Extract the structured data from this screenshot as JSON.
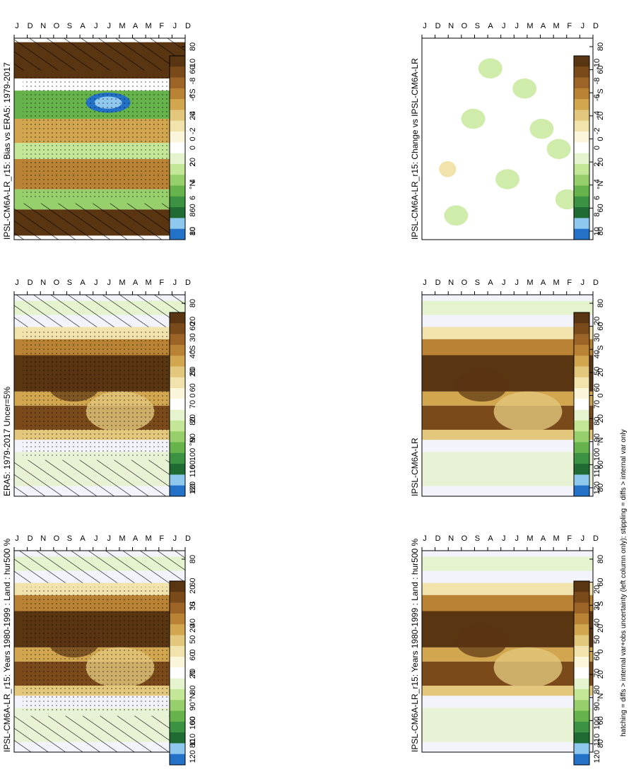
{
  "figure": {
    "footnote": "hatching = diffs > internal var+obs uncertainty (left column only); stippling = diffs > internal var only"
  },
  "colors": {
    "abs_scale": [
      "#2372c8",
      "#8ec8ee",
      "#1f6b33",
      "#3a9242",
      "#66b34b",
      "#96cf6b",
      "#c3e796",
      "#e5f4cf",
      "#ffffff",
      "#fbf5dc",
      "#f1e3ab",
      "#e2c77c",
      "#d1a64f",
      "#b98235",
      "#9c6426",
      "#7b4a1b",
      "#5a3512"
    ],
    "bias_scale": [
      "#2372c8",
      "#8ec8ee",
      "#1f6b33",
      "#3a9242",
      "#66b34b",
      "#96cf6b",
      "#c3e796",
      "#e5f4cf",
      "#ffffff",
      "#fbf5dc",
      "#f1e3ab",
      "#e2c77c",
      "#d1a64f",
      "#b98235",
      "#9c6426",
      "#7b4a1b",
      "#5a3512"
    ]
  },
  "chart_data": [
    {
      "type": "heatmap",
      "title": "IPSL-CM6A-LR_r15: Years 1980-1999 : Land : hur500 %",
      "x_tick_labels": [
        "D",
        "J",
        "F",
        "M",
        "A",
        "M",
        "J",
        "J",
        "A",
        "S",
        "O",
        "N",
        "D",
        "J"
      ],
      "y_tick_labels": [
        "80",
        "60",
        "°N",
        "20",
        "0",
        "20",
        "°S",
        "60",
        "80"
      ],
      "colorbar_labels": [
        "120",
        "110",
        "100",
        "90",
        "80",
        "70",
        "60",
        "50",
        "40",
        "30",
        "20"
      ],
      "hatching": true,
      "stippling": true
    },
    {
      "type": "heatmap",
      "title": "IPSL-CM6A-LR_r15: Years 1980-1999 : Land : hur500 %",
      "x_tick_labels": [
        "D",
        "J",
        "F",
        "M",
        "A",
        "M",
        "J",
        "J",
        "A",
        "S",
        "O",
        "N",
        "D",
        "J"
      ],
      "y_tick_labels": [
        "80",
        "60",
        "°N",
        "20",
        "0",
        "20",
        "°S",
        "60",
        "80"
      ],
      "colorbar_labels": [
        "120",
        "110",
        "100",
        "90",
        "80",
        "70",
        "60",
        "50",
        "40",
        "30",
        "20"
      ],
      "hatching": false,
      "stippling": false
    },
    {
      "type": "heatmap",
      "title": "ERA5: 1979-2017 Uncer=5%",
      "x_tick_labels": [
        "D",
        "J",
        "F",
        "M",
        "A",
        "M",
        "J",
        "J",
        "A",
        "S",
        "O",
        "N",
        "D",
        "J"
      ],
      "y_tick_labels": [
        "80",
        "60",
        "°N",
        "20",
        "0",
        "20",
        "°S",
        "60",
        "80"
      ],
      "colorbar_labels": [
        "120",
        "110",
        "100",
        "90",
        "80",
        "70",
        "60",
        "50",
        "40",
        "30",
        "20"
      ],
      "hatching": true,
      "stippling": true
    },
    {
      "type": "heatmap",
      "title": "IPSL-CM6A-LR",
      "x_tick_labels": [
        "D",
        "J",
        "F",
        "M",
        "A",
        "M",
        "J",
        "J",
        "A",
        "S",
        "O",
        "N",
        "D",
        "J"
      ],
      "y_tick_labels": [
        "80",
        "60",
        "°N",
        "20",
        "0",
        "20",
        "°S",
        "60",
        "80"
      ],
      "colorbar_labels": [
        "120",
        "110",
        "100",
        "90",
        "80",
        "70",
        "60",
        "50",
        "40",
        "30",
        "20"
      ],
      "hatching": false,
      "stippling": false
    },
    {
      "type": "heatmap",
      "title": "IPSL-CM6A-LR_r15: Bias vs ERA5: 1979-2017",
      "x_tick_labels": [
        "D",
        "J",
        "F",
        "M",
        "A",
        "M",
        "J",
        "J",
        "A",
        "S",
        "O",
        "N",
        "D",
        "J"
      ],
      "y_tick_labels": [
        "80",
        "60",
        "°N",
        "20",
        "0",
        "20",
        "°S",
        "60",
        "80"
      ],
      "colorbar_labels": [
        "10",
        "8",
        "6",
        "4",
        "2",
        "0",
        "-2",
        "-4",
        "-6",
        "-8",
        "-10"
      ],
      "hatching": true,
      "stippling": true
    },
    {
      "type": "heatmap",
      "title": "IPSL-CM6A-LR_r15: Change vs IPSL-CM6A-LR",
      "x_tick_labels": [
        "D",
        "J",
        "F",
        "M",
        "A",
        "M",
        "J",
        "J",
        "A",
        "S",
        "O",
        "N",
        "D",
        "J"
      ],
      "y_tick_labels": [
        "80",
        "60",
        "°N",
        "20",
        "0",
        "20",
        "°S",
        "60",
        "80"
      ],
      "colorbar_labels": [
        "10",
        "8",
        "6",
        "4",
        "2",
        "0",
        "-2",
        "-4",
        "-6",
        "-8",
        "-10"
      ],
      "hatching": false,
      "stippling": false
    }
  ]
}
